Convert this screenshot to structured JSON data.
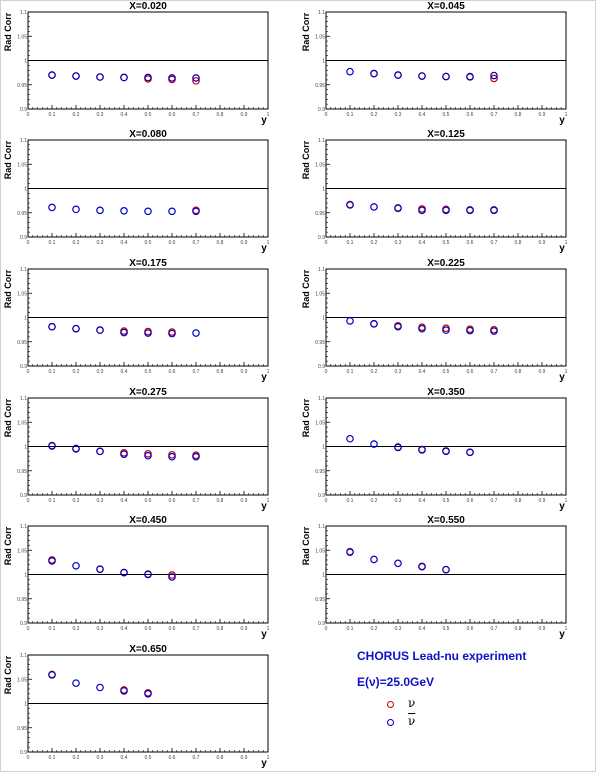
{
  "experiment_label": "CHORUS Lead-nu experiment",
  "energy_label": "E(ν)=25.0GeV",
  "legend": [
    {
      "label": "ν",
      "color": "#cc0000",
      "bar": false
    },
    {
      "label": "ν",
      "color": "#0000cc",
      "bar": true
    }
  ],
  "colors": {
    "nu": "#cc0000",
    "nubar": "#0000cc",
    "accent_text": "#1010c8"
  },
  "chart_data": [
    {
      "type": "scatter",
      "title": "X=0.020",
      "xlabel": "y",
      "ylabel": "Rad Corr",
      "xlim": [
        0,
        1
      ],
      "ylim": [
        0.9,
        1.1
      ],
      "xticks": [
        "0",
        "0.1",
        "0.2",
        "0.3",
        "0.4",
        "0.5",
        "0.6",
        "0.7",
        "0.8",
        "0.9",
        "1"
      ],
      "yticks": [
        "0.9",
        "0.95",
        "1",
        "1.05",
        "1.1"
      ],
      "reference_line": 1.0,
      "series": [
        {
          "values": [
            [
              0.1,
              0.97
            ],
            [
              0.2,
              0.968
            ],
            [
              0.3,
              0.966
            ],
            [
              0.4,
              0.965
            ],
            [
              0.5,
              0.962
            ],
            [
              0.6,
              0.961
            ],
            [
              0.7,
              0.958
            ]
          ]
        },
        {
          "values": [
            [
              0.1,
              0.97
            ],
            [
              0.2,
              0.968
            ],
            [
              0.3,
              0.966
            ],
            [
              0.4,
              0.965
            ],
            [
              0.5,
              0.965
            ],
            [
              0.6,
              0.964
            ],
            [
              0.7,
              0.964
            ]
          ]
        }
      ]
    },
    {
      "type": "scatter",
      "title": "X=0.045",
      "xlabel": "y",
      "ylabel": "Rad Corr",
      "xlim": [
        0,
        1
      ],
      "ylim": [
        0.9,
        1.1
      ],
      "xticks": [
        "0",
        "0.1",
        "0.2",
        "0.3",
        "0.4",
        "0.5",
        "0.6",
        "0.7",
        "0.8",
        "0.9",
        "1"
      ],
      "yticks": [
        "0.9",
        "0.95",
        "1",
        "1.05",
        "1.1"
      ],
      "reference_line": 1.0,
      "series": [
        {
          "values": [
            [
              0.2,
              0.973
            ],
            [
              0.3,
              0.97
            ],
            [
              0.4,
              0.968
            ],
            [
              0.5,
              0.967
            ],
            [
              0.6,
              0.966
            ],
            [
              0.7,
              0.963
            ]
          ]
        },
        {
          "values": [
            [
              0.1,
              0.977
            ],
            [
              0.2,
              0.973
            ],
            [
              0.3,
              0.97
            ],
            [
              0.4,
              0.968
            ],
            [
              0.5,
              0.967
            ],
            [
              0.6,
              0.967
            ],
            [
              0.7,
              0.969
            ]
          ]
        }
      ]
    },
    {
      "type": "scatter",
      "title": "X=0.080",
      "xlabel": "y",
      "ylabel": "Rad Corr",
      "xlim": [
        0,
        1
      ],
      "ylim": [
        0.9,
        1.1
      ],
      "xticks": [
        "0",
        "0.1",
        "0.2",
        "0.3",
        "0.4",
        "0.5",
        "0.6",
        "0.7",
        "0.8",
        "0.9",
        "1"
      ],
      "yticks": [
        "0.9",
        "0.95",
        "1",
        "1.05",
        "1.1"
      ],
      "reference_line": 1.0,
      "series": [
        {
          "values": [
            [
              0.7,
              0.955
            ]
          ]
        },
        {
          "values": [
            [
              0.1,
              0.961
            ],
            [
              0.2,
              0.957
            ],
            [
              0.3,
              0.955
            ],
            [
              0.4,
              0.954
            ],
            [
              0.5,
              0.953
            ],
            [
              0.6,
              0.953
            ],
            [
              0.7,
              0.953
            ]
          ]
        }
      ]
    },
    {
      "type": "scatter",
      "title": "X=0.125",
      "xlabel": "y",
      "ylabel": "Rad Corr",
      "xlim": [
        0,
        1
      ],
      "ylim": [
        0.9,
        1.1
      ],
      "xticks": [
        "0",
        "0.1",
        "0.2",
        "0.3",
        "0.4",
        "0.5",
        "0.6",
        "0.7",
        "0.8",
        "0.9",
        "1"
      ],
      "yticks": [
        "0.9",
        "0.95",
        "1",
        "1.05",
        "1.1"
      ],
      "reference_line": 1.0,
      "series": [
        {
          "values": [
            [
              0.1,
              0.967
            ],
            [
              0.3,
              0.959
            ],
            [
              0.4,
              0.958
            ],
            [
              0.5,
              0.957
            ],
            [
              0.6,
              0.956
            ],
            [
              0.7,
              0.956
            ]
          ]
        },
        {
          "values": [
            [
              0.1,
              0.966
            ],
            [
              0.2,
              0.962
            ],
            [
              0.3,
              0.96
            ],
            [
              0.4,
              0.955
            ],
            [
              0.5,
              0.955
            ],
            [
              0.6,
              0.955
            ],
            [
              0.7,
              0.955
            ]
          ]
        }
      ]
    },
    {
      "type": "scatter",
      "title": "X=0.175",
      "xlabel": "y",
      "ylabel": "Rad Corr",
      "xlim": [
        0,
        1
      ],
      "ylim": [
        0.9,
        1.1
      ],
      "xticks": [
        "0",
        "0.1",
        "0.2",
        "0.3",
        "0.4",
        "0.5",
        "0.6",
        "0.7",
        "0.8",
        "0.9",
        "1"
      ],
      "yticks": [
        "0.9",
        "0.95",
        "1",
        "1.05",
        "1.1"
      ],
      "reference_line": 1.0,
      "series": [
        {
          "values": [
            [
              0.1,
              0.981
            ],
            [
              0.2,
              0.977
            ],
            [
              0.3,
              0.974
            ],
            [
              0.4,
              0.972
            ],
            [
              0.5,
              0.971
            ],
            [
              0.6,
              0.97
            ]
          ]
        },
        {
          "values": [
            [
              0.1,
              0.981
            ],
            [
              0.2,
              0.977
            ],
            [
              0.3,
              0.974
            ],
            [
              0.4,
              0.969
            ],
            [
              0.5,
              0.968
            ],
            [
              0.6,
              0.967
            ],
            [
              0.7,
              0.968
            ]
          ]
        }
      ]
    },
    {
      "type": "scatter",
      "title": "X=0.225",
      "xlabel": "y",
      "ylabel": "Rad Corr",
      "xlim": [
        0,
        1
      ],
      "ylim": [
        0.9,
        1.1
      ],
      "xticks": [
        "0",
        "0.1",
        "0.2",
        "0.3",
        "0.4",
        "0.5",
        "0.6",
        "0.7",
        "0.8",
        "0.9",
        "1"
      ],
      "yticks": [
        "0.9",
        "0.95",
        "1",
        "1.05",
        "1.1"
      ],
      "reference_line": 1.0,
      "series": [
        {
          "values": [
            [
              0.2,
              0.987
            ],
            [
              0.3,
              0.983
            ],
            [
              0.4,
              0.98
            ],
            [
              0.5,
              0.978
            ],
            [
              0.6,
              0.976
            ],
            [
              0.7,
              0.975
            ]
          ]
        },
        {
          "values": [
            [
              0.1,
              0.993
            ],
            [
              0.2,
              0.987
            ],
            [
              0.3,
              0.981
            ],
            [
              0.4,
              0.977
            ],
            [
              0.5,
              0.974
            ],
            [
              0.6,
              0.973
            ],
            [
              0.7,
              0.972
            ]
          ]
        }
      ]
    },
    {
      "type": "scatter",
      "title": "X=0.275",
      "xlabel": "y",
      "ylabel": "Rad Corr",
      "xlim": [
        0,
        1
      ],
      "ylim": [
        0.9,
        1.1
      ],
      "xticks": [
        "0",
        "0.1",
        "0.2",
        "0.3",
        "0.4",
        "0.5",
        "0.6",
        "0.7",
        "0.8",
        "0.9",
        "1"
      ],
      "yticks": [
        "0.9",
        "0.95",
        "1",
        "1.05",
        "1.1"
      ],
      "reference_line": 1.0,
      "series": [
        {
          "values": [
            [
              0.1,
              1.002
            ],
            [
              0.2,
              0.996
            ],
            [
              0.3,
              0.99
            ],
            [
              0.4,
              0.987
            ],
            [
              0.5,
              0.985
            ],
            [
              0.6,
              0.983
            ],
            [
              0.7,
              0.982
            ]
          ]
        },
        {
          "values": [
            [
              0.1,
              1.001
            ],
            [
              0.2,
              0.995
            ],
            [
              0.3,
              0.99
            ],
            [
              0.4,
              0.984
            ],
            [
              0.5,
              0.981
            ],
            [
              0.6,
              0.979
            ],
            [
              0.7,
              0.979
            ]
          ]
        }
      ]
    },
    {
      "type": "scatter",
      "title": "X=0.350",
      "xlabel": "y",
      "ylabel": "Rad Corr",
      "xlim": [
        0,
        1
      ],
      "ylim": [
        0.9,
        1.1
      ],
      "xticks": [
        "0",
        "0.1",
        "0.2",
        "0.3",
        "0.4",
        "0.5",
        "0.6",
        "0.7",
        "0.8",
        "0.9",
        "1"
      ],
      "yticks": [
        "0.9",
        "0.95",
        "1",
        "1.05",
        "1.1"
      ],
      "reference_line": 1.0,
      "series": [
        {
          "values": [
            [
              0.3,
              0.999
            ],
            [
              0.4,
              0.994
            ],
            [
              0.5,
              0.991
            ],
            [
              0.6,
              0.988
            ]
          ]
        },
        {
          "values": [
            [
              0.1,
              1.016
            ],
            [
              0.2,
              1.005
            ],
            [
              0.3,
              0.998
            ],
            [
              0.4,
              0.993
            ],
            [
              0.5,
              0.99
            ],
            [
              0.6,
              0.988
            ]
          ]
        }
      ]
    },
    {
      "type": "scatter",
      "title": "X=0.450",
      "xlabel": "y",
      "ylabel": "Rad Corr",
      "xlim": [
        0,
        1
      ],
      "ylim": [
        0.9,
        1.1
      ],
      "xticks": [
        "0",
        "0.1",
        "0.2",
        "0.3",
        "0.4",
        "0.5",
        "0.6",
        "0.7",
        "0.8",
        "0.9",
        "1"
      ],
      "yticks": [
        "0.9",
        "0.95",
        "1",
        "1.05",
        "1.1"
      ],
      "reference_line": 1.0,
      "series": [
        {
          "values": [
            [
              0.1,
              1.03
            ],
            [
              0.3,
              1.011
            ],
            [
              0.4,
              1.004
            ],
            [
              0.5,
              1.001
            ],
            [
              0.6,
              0.999
            ]
          ]
        },
        {
          "values": [
            [
              0.1,
              1.028
            ],
            [
              0.2,
              1.018
            ],
            [
              0.3,
              1.011
            ],
            [
              0.4,
              1.004
            ],
            [
              0.5,
              1.0
            ],
            [
              0.6,
              0.995
            ]
          ]
        }
      ]
    },
    {
      "type": "scatter",
      "title": "X=0.550",
      "xlabel": "y",
      "ylabel": "Rad Corr",
      "xlim": [
        0,
        1
      ],
      "ylim": [
        0.9,
        1.1
      ],
      "xticks": [
        "0",
        "0.1",
        "0.2",
        "0.3",
        "0.4",
        "0.5",
        "0.6",
        "0.7",
        "0.8",
        "0.9",
        "1"
      ],
      "yticks": [
        "0.9",
        "0.95",
        "1",
        "1.05",
        "1.1"
      ],
      "reference_line": 1.0,
      "series": [
        {
          "values": [
            [
              0.1,
              1.047
            ],
            [
              0.4,
              1.017
            ],
            [
              0.5,
              1.01
            ]
          ]
        },
        {
          "values": [
            [
              0.1,
              1.046
            ],
            [
              0.2,
              1.031
            ],
            [
              0.3,
              1.023
            ],
            [
              0.4,
              1.016
            ],
            [
              0.5,
              1.01
            ]
          ]
        }
      ]
    },
    {
      "type": "scatter",
      "title": "X=0.650",
      "xlabel": "y",
      "ylabel": "Rad Corr",
      "xlim": [
        0,
        1
      ],
      "ylim": [
        0.9,
        1.1
      ],
      "xticks": [
        "0",
        "0.1",
        "0.2",
        "0.3",
        "0.4",
        "0.5",
        "0.6",
        "0.7",
        "0.8",
        "0.9",
        "1"
      ],
      "yticks": [
        "0.9",
        "0.95",
        "1",
        "1.05",
        "1.1"
      ],
      "reference_line": 1.0,
      "series": [
        {
          "values": [
            [
              0.1,
              1.06
            ],
            [
              0.4,
              1.028
            ],
            [
              0.5,
              1.022
            ]
          ]
        },
        {
          "values": [
            [
              0.1,
              1.059
            ],
            [
              0.2,
              1.042
            ],
            [
              0.3,
              1.033
            ],
            [
              0.4,
              1.026
            ],
            [
              0.5,
              1.02
            ]
          ]
        }
      ]
    }
  ]
}
